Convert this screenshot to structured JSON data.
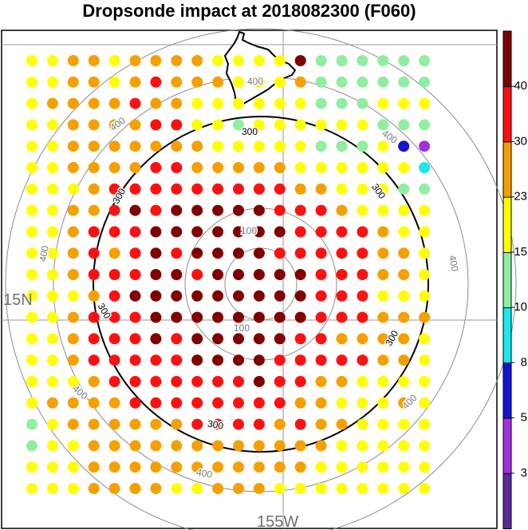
{
  "title": "Dropsonde impact at 2018082300 (F060)",
  "map": {
    "lat_label": "15N",
    "lon_label": "155W",
    "range_ring_labels": {
      "inner": "100",
      "middle": "200",
      "bold": "300",
      "outer": "400"
    },
    "island_outline": "Big Island (Hawaii)"
  },
  "colorbar": {
    "tick_labels": [
      "3",
      "5",
      "8",
      "10",
      "15",
      "23",
      "30",
      "40"
    ],
    "colors": [
      "#5a2a9a",
      "#a030e0",
      "#1414d0",
      "#18e8f0",
      "#90eea0",
      "#ffff00",
      "#f5a000",
      "#ff1010",
      "#800000"
    ]
  },
  "chart_data": {
    "type": "scatter",
    "description_levels": "dot color encodes impact value bin",
    "grid": {
      "columns": 21,
      "rows": 21
    },
    "color_bins": [
      {
        "index": 0,
        "range": "<3"
      },
      {
        "index": 1,
        "range": "3-5"
      },
      {
        "index": 2,
        "range": "5-8"
      },
      {
        "index": 3,
        "range": "8-10"
      },
      {
        "index": 4,
        "range": "10-15"
      },
      {
        "index": 5,
        "range": "15-23"
      },
      {
        "index": 6,
        "range": "23-30"
      },
      {
        "index": 7,
        "range": "30-40"
      },
      {
        "index": 8,
        "range": ">40"
      }
    ],
    "cells": [
      "55665666655558444444.",
      "55665676665556444444.",
      "56666766555555444555.",
      "55666677554555555444.",
      "55666666655555444521.",
      "55666677666665555553.",
      "55567777777776655544.",
      "55667878888877765555.",
      "55677788888887777655.",
      "55676787888877777665.",
      "55677788788888777665.",
      "55567888888888777555.",
      "55677788888888777666.",
      "55677787888887766665.",
      "55677777888877777665.",
      "55567777777877665555.",
      "56666777777776655565.",
      "45666666777767665555.",
      "45566666666666655555.",
      "55566666666666555555.",
      "55566665566655555555."
    ]
  }
}
